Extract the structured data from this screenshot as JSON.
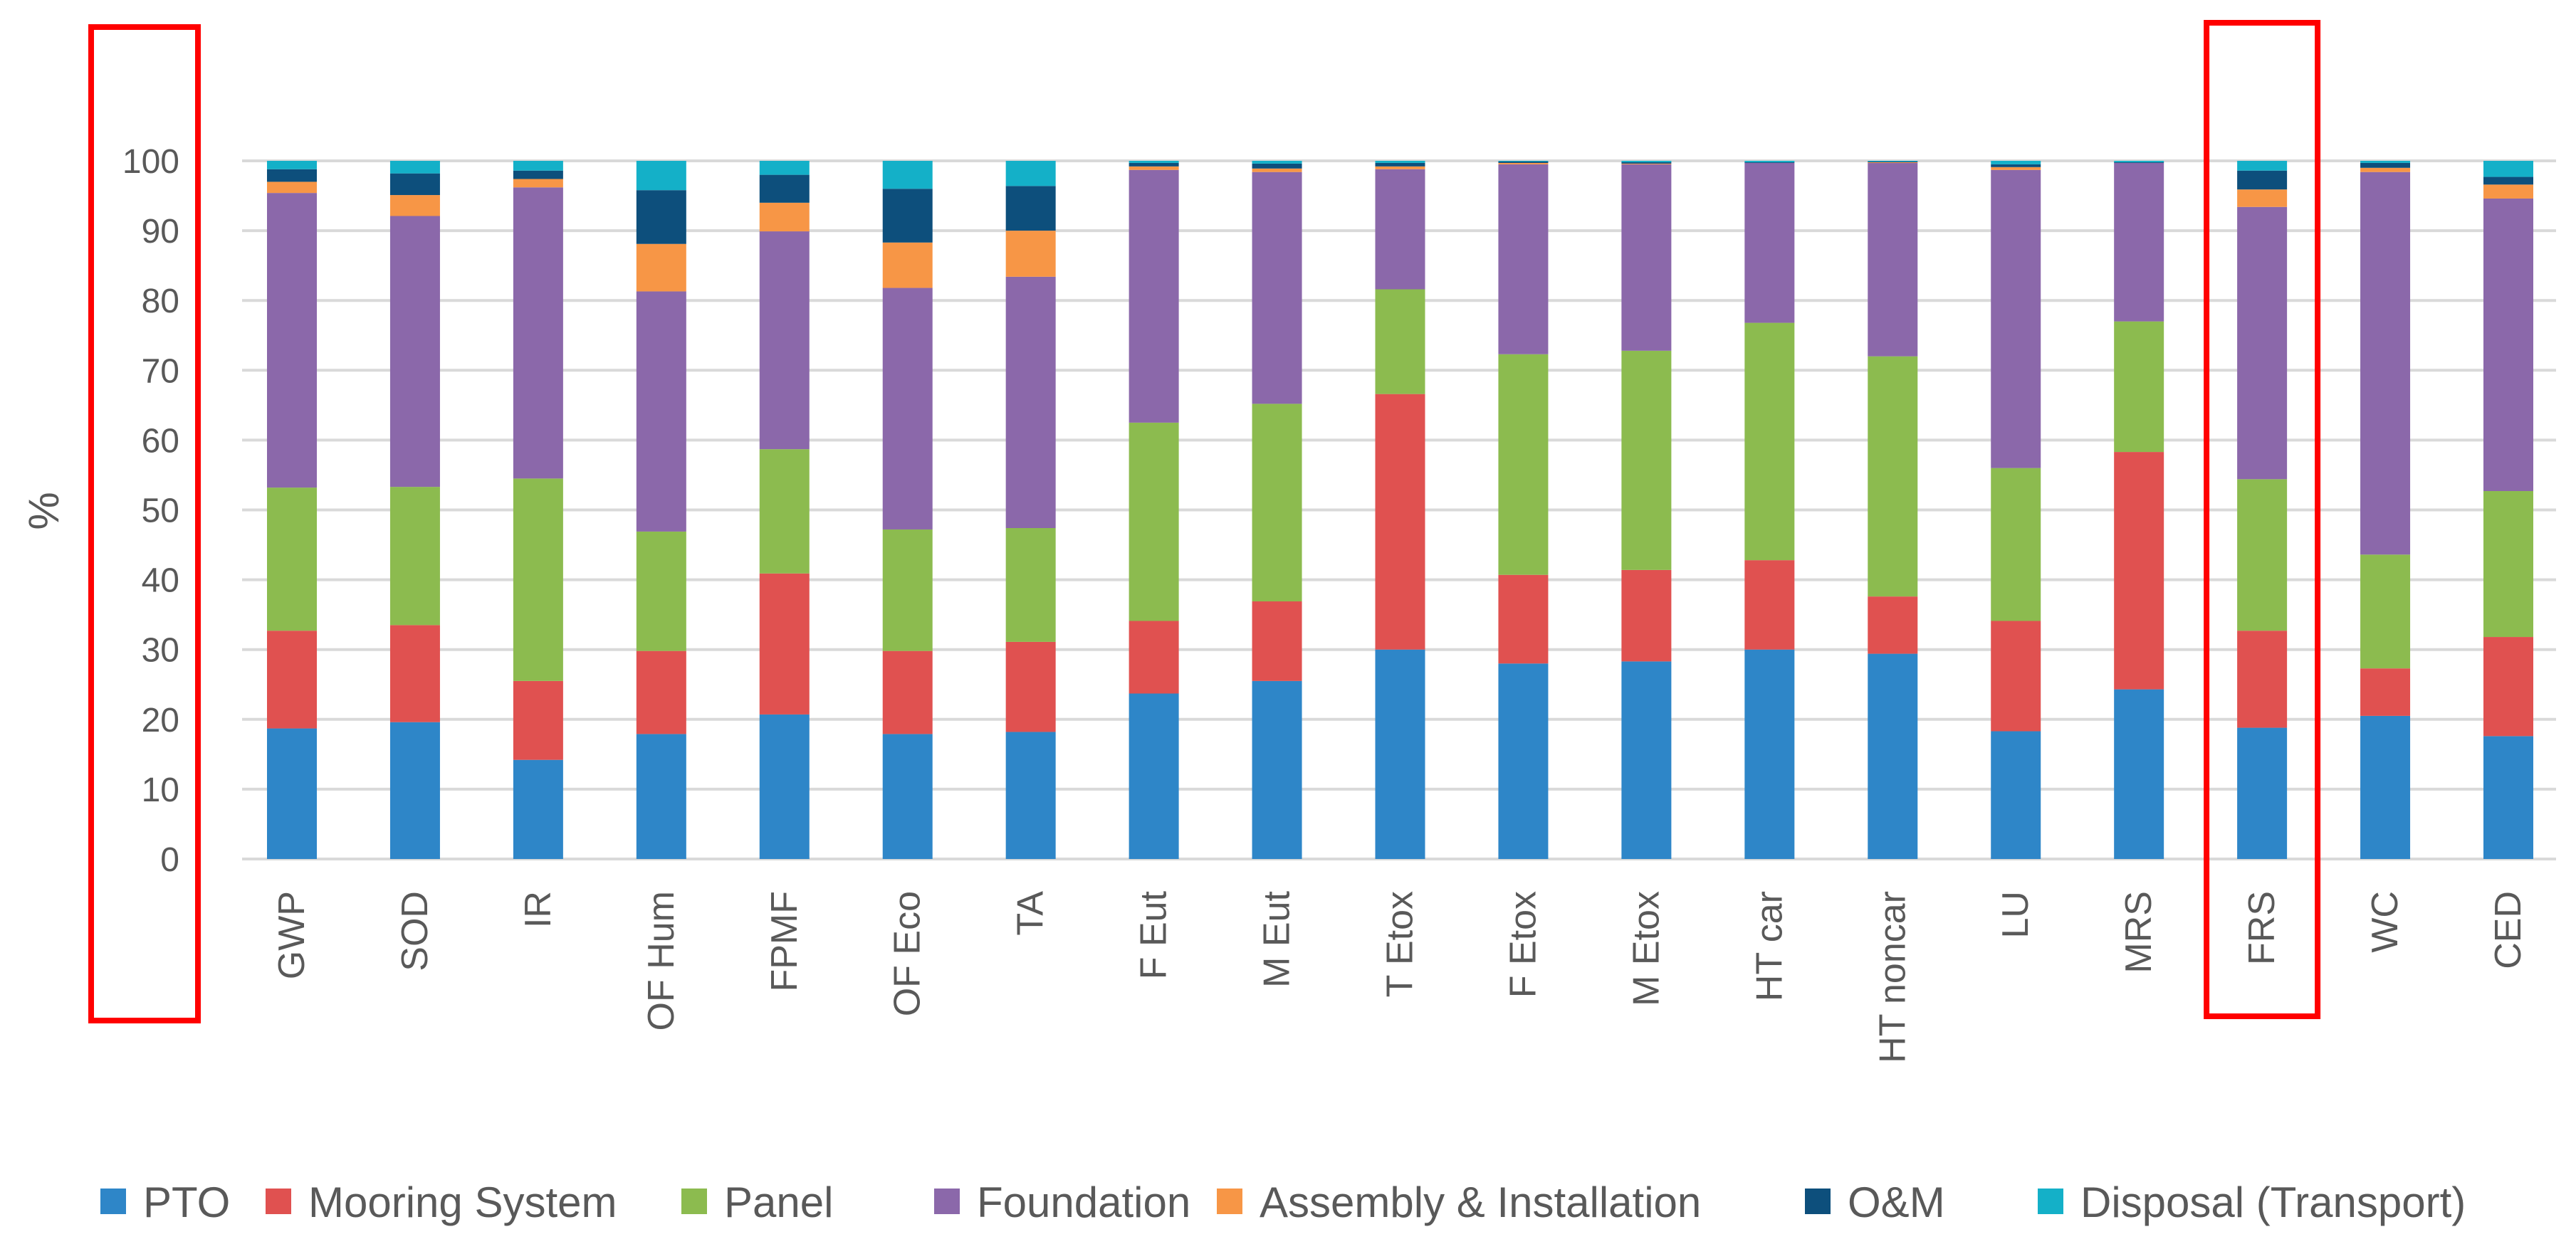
{
  "chart_data": {
    "type": "bar",
    "stacked": true,
    "title": "",
    "xlabel": "",
    "ylabel": "%",
    "ylim": [
      0,
      100
    ],
    "yticks": [
      0,
      10,
      20,
      30,
      40,
      50,
      60,
      70,
      80,
      90,
      100
    ],
    "grid": true,
    "legend_position": "bottom",
    "highlights": [
      "y-axis",
      "FRS"
    ],
    "categories": [
      "GWP",
      "SOD",
      "IR",
      "OF Hum",
      "FPMF",
      "OF Eco",
      "TA",
      "F Eut",
      "M Eut",
      "T Etox",
      "F Etox",
      "M Etox",
      "HT car",
      "HT noncar",
      "LU",
      "MRS",
      "FRS",
      "WC",
      "CED"
    ],
    "series": [
      {
        "name": "PTO",
        "color": "#2E86C8",
        "values": [
          18.7,
          19.6,
          14.2,
          17.9,
          20.7,
          17.9,
          18.2,
          23.7,
          25.5,
          30.0,
          28.0,
          28.3,
          30.0,
          29.4,
          18.3,
          24.3,
          18.8,
          20.5,
          17.6
        ]
      },
      {
        "name": "Mooring System",
        "color": "#E05150",
        "values": [
          14.0,
          13.9,
          11.3,
          11.9,
          20.2,
          11.9,
          12.9,
          10.4,
          11.4,
          36.6,
          12.7,
          13.1,
          12.8,
          8.2,
          15.8,
          34.0,
          13.9,
          6.8,
          14.2
        ]
      },
      {
        "name": "Panel",
        "color": "#8CBB4F",
        "values": [
          20.5,
          19.8,
          29.0,
          17.1,
          17.8,
          17.4,
          16.3,
          28.4,
          28.3,
          15.0,
          31.6,
          31.4,
          34.0,
          34.4,
          21.9,
          18.7,
          21.7,
          16.3,
          20.9
        ]
      },
      {
        "name": "Foundation",
        "color": "#8B68AA",
        "values": [
          42.2,
          38.8,
          41.7,
          34.4,
          31.2,
          34.6,
          36.0,
          36.2,
          33.2,
          17.2,
          27.2,
          26.7,
          22.9,
          27.7,
          42.7,
          22.7,
          39.0,
          54.8,
          41.9
        ]
      },
      {
        "name": "Assembly & Installation",
        "color": "#F79646",
        "values": [
          1.6,
          3.0,
          1.2,
          6.8,
          4.1,
          6.5,
          6.6,
          0.5,
          0.5,
          0.4,
          0.2,
          0.1,
          0.0,
          0.1,
          0.4,
          0.0,
          2.5,
          0.6,
          2.0
        ]
      },
      {
        "name": "O&M",
        "color": "#0D4F7C",
        "values": [
          1.8,
          3.1,
          1.2,
          7.7,
          4.0,
          7.7,
          6.4,
          0.5,
          0.7,
          0.5,
          0.2,
          0.2,
          0.1,
          0.1,
          0.4,
          0.1,
          2.7,
          0.7,
          1.1
        ]
      },
      {
        "name": "Disposal (Transport)",
        "color": "#14B0C8",
        "values": [
          1.2,
          1.8,
          1.4,
          4.2,
          2.0,
          4.0,
          3.6,
          0.3,
          0.4,
          0.3,
          0.1,
          0.2,
          0.2,
          0.1,
          0.5,
          0.2,
          1.4,
          0.3,
          2.3
        ]
      }
    ]
  }
}
